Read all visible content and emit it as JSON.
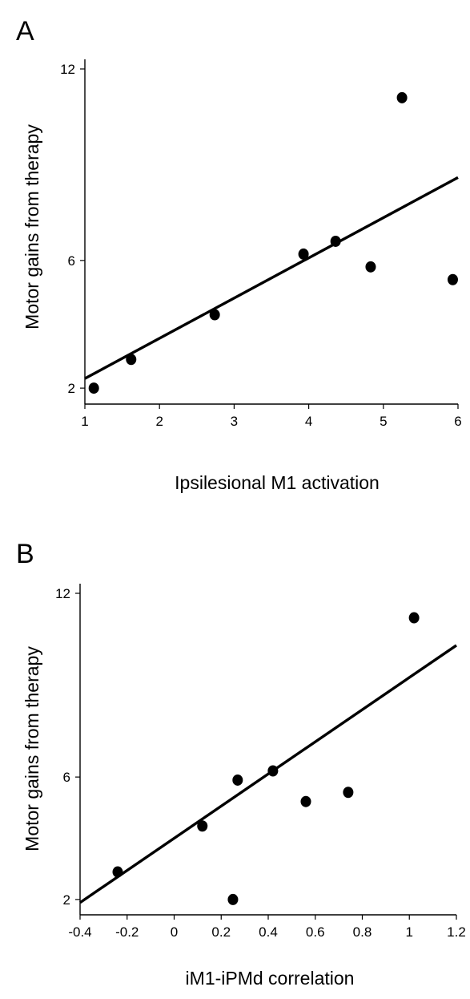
{
  "chart_data": [
    {
      "type": "scatter",
      "panel": "A",
      "xlabel": "Ipsilesional M1 activation",
      "ylabel": "Motor gains from therapy",
      "xlim": [
        1,
        6
      ],
      "ylim": [
        1.5,
        12
      ],
      "xticks": [
        1,
        2,
        3,
        4,
        5,
        6
      ],
      "yticks": [
        2,
        6,
        12
      ],
      "grid": false,
      "legend": "none",
      "points": [
        {
          "x": 1.12,
          "y": 2.0
        },
        {
          "x": 1.62,
          "y": 2.9
        },
        {
          "x": 2.74,
          "y": 4.3
        },
        {
          "x": 3.93,
          "y": 6.2
        },
        {
          "x": 4.36,
          "y": 6.6
        },
        {
          "x": 4.83,
          "y": 5.8
        },
        {
          "x": 5.25,
          "y": 11.1
        },
        {
          "x": 5.93,
          "y": 5.4
        }
      ],
      "trend_line": {
        "x": [
          1.0,
          6.0
        ],
        "y": [
          2.3,
          8.6
        ]
      }
    },
    {
      "type": "scatter",
      "panel": "B",
      "xlabel": "iM1-iPMd correlation",
      "ylabel": "Motor gains from therapy",
      "xlim": [
        -0.4,
        1.2
      ],
      "ylim": [
        1.5,
        12
      ],
      "xticks": [
        -0.4,
        -0.2,
        0,
        0.2,
        0.4,
        0.6,
        0.8,
        1,
        1.2
      ],
      "yticks": [
        2,
        6,
        12
      ],
      "grid": false,
      "legend": "none",
      "points": [
        {
          "x": -0.24,
          "y": 2.9
        },
        {
          "x": 0.12,
          "y": 4.4
        },
        {
          "x": 0.25,
          "y": 2.0
        },
        {
          "x": 0.27,
          "y": 5.9
        },
        {
          "x": 0.42,
          "y": 6.2
        },
        {
          "x": 0.56,
          "y": 5.2
        },
        {
          "x": 0.74,
          "y": 5.5
        },
        {
          "x": 1.02,
          "y": 11.2
        }
      ],
      "trend_line": {
        "x": [
          -0.4,
          1.2
        ],
        "y": [
          1.9,
          10.3
        ]
      }
    }
  ]
}
